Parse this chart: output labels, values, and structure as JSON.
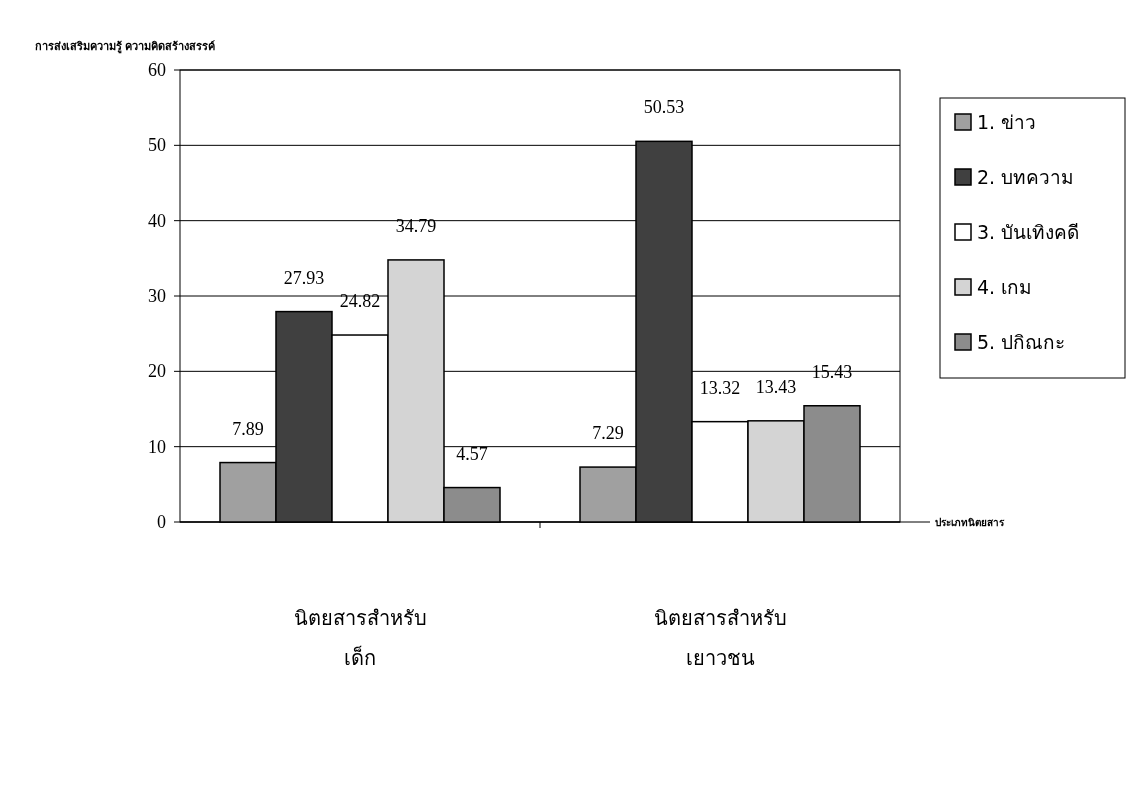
{
  "chart_data": {
    "type": "bar",
    "title": "การส่งเสริมความรู้ ความคิดสร้างสรรค์",
    "xlabel": "ประเภทนิตยสาร",
    "categories": [
      "นิตยสารสำหรับ\nเด็ก",
      "นิตยสารสำหรับ\nเยาวชน"
    ],
    "series": [
      {
        "name": "1. ข่าว",
        "color": "#a0a0a0",
        "values": [
          7.89,
          7.29
        ]
      },
      {
        "name": "2. บทความ",
        "color": "#404040",
        "values": [
          27.93,
          50.53
        ]
      },
      {
        "name": "3. บันเทิงคดี",
        "color": "#ffffff",
        "values": [
          24.82,
          13.32
        ]
      },
      {
        "name": "4. เกม",
        "color": "#d4d4d4",
        "values": [
          34.79,
          13.43
        ]
      },
      {
        "name": "5. ปกิณกะ",
        "color": "#8c8c8c",
        "values": [
          4.57,
          15.43
        ]
      }
    ],
    "ylim": [
      0,
      60
    ],
    "yticks": [
      0,
      10,
      20,
      30,
      40,
      50,
      60
    ],
    "grid": "y",
    "legend": "right",
    "data_labels": true
  }
}
